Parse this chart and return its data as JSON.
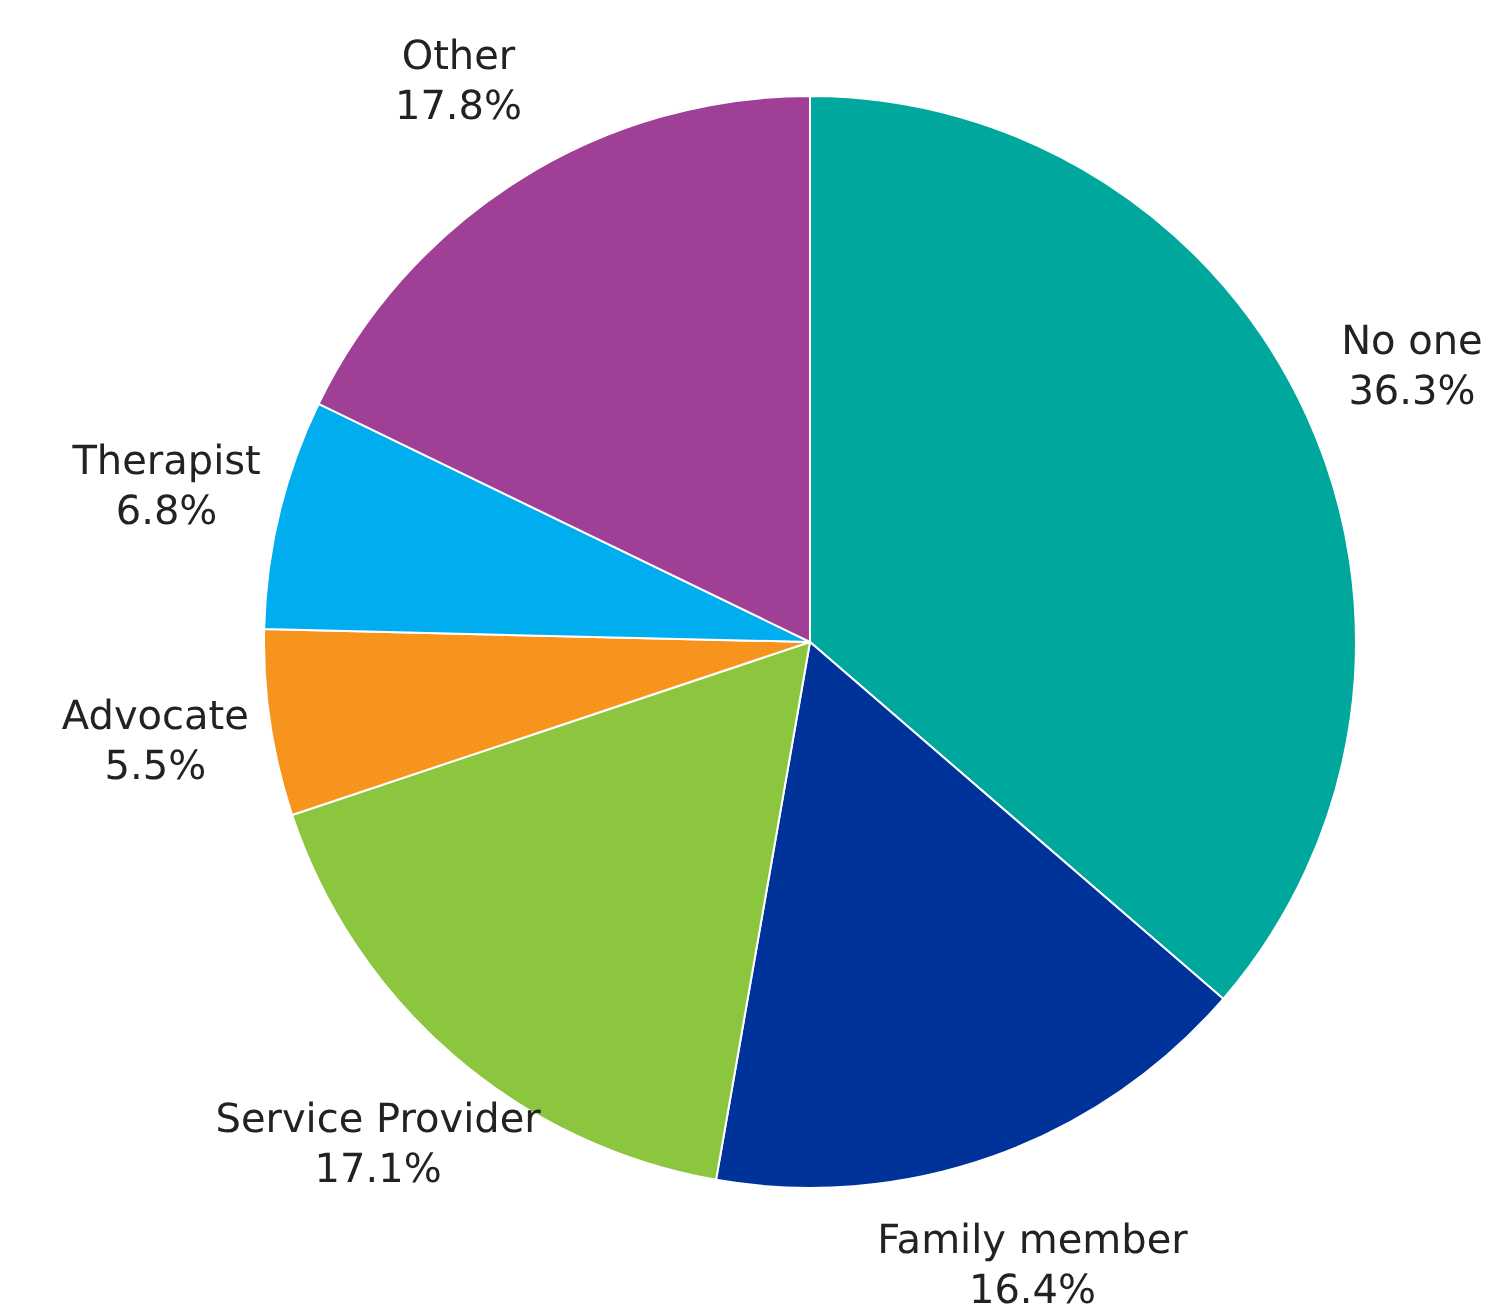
{
  "chart_data": {
    "type": "pie",
    "categories": [
      "No one",
      "Family member",
      "Service Provider",
      "Advocate",
      "Therapist",
      "Other"
    ],
    "values": [
      36.3,
      16.4,
      17.1,
      5.5,
      6.8,
      17.8
    ],
    "value_labels": [
      "36.3%",
      "16.4%",
      "17.1%",
      "5.5%",
      "6.8%",
      "17.8%"
    ],
    "colors": [
      "#00a79d",
      "#00339a",
      "#8cc63f",
      "#f7941d",
      "#00aeef",
      "#a03f96"
    ]
  }
}
